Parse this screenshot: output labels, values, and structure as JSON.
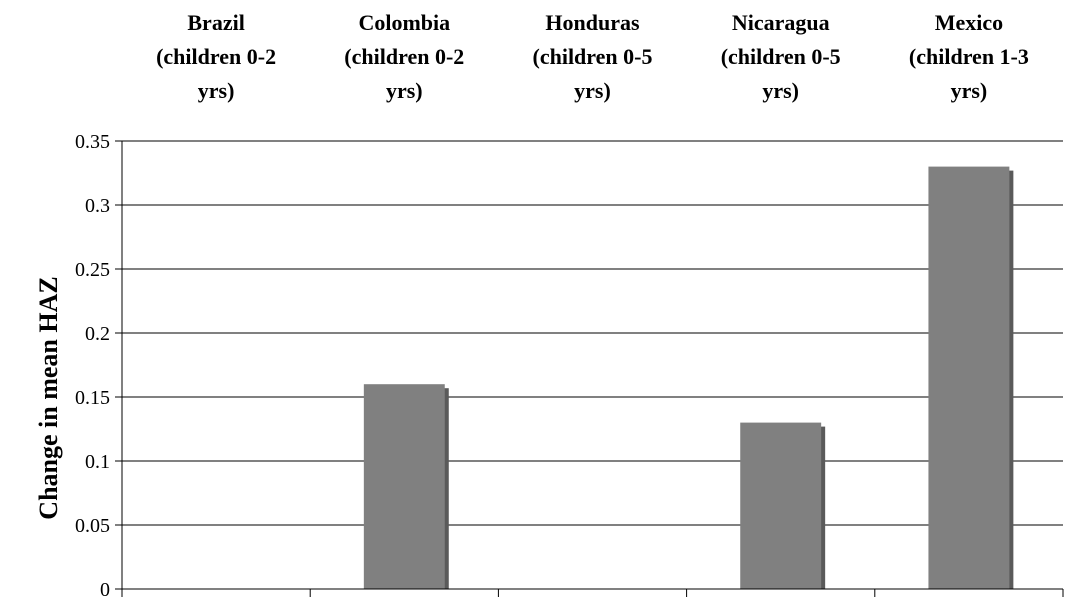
{
  "chart_data": {
    "type": "bar",
    "title": "",
    "xlabel": "",
    "ylabel": "Change in mean HAZ",
    "ylim": [
      0,
      0.35
    ],
    "yticks": [
      "0",
      "0.05",
      "0.1",
      "0.15",
      "0.2",
      "0.25",
      "0.3",
      "0.35"
    ],
    "ytick_values": [
      0,
      0.05,
      0.1,
      0.15,
      0.2,
      0.25,
      0.3,
      0.35
    ],
    "x_axis_position": "top",
    "categories": [
      [
        "Brazil",
        "(children 0-2",
        "yrs)"
      ],
      [
        "Colombia",
        "(children 0-2",
        "yrs)"
      ],
      [
        "Honduras",
        "(children 0-5",
        "yrs)"
      ],
      [
        "Nicaragua",
        "(children 0-5",
        "yrs)"
      ],
      [
        "Mexico",
        "(children 1-3",
        "yrs)"
      ]
    ],
    "values": [
      0,
      0.16,
      0,
      0.13,
      0.33
    ],
    "grid": true,
    "bar_color": "#808080",
    "bar_shadow_color": "#5a5a5a"
  }
}
